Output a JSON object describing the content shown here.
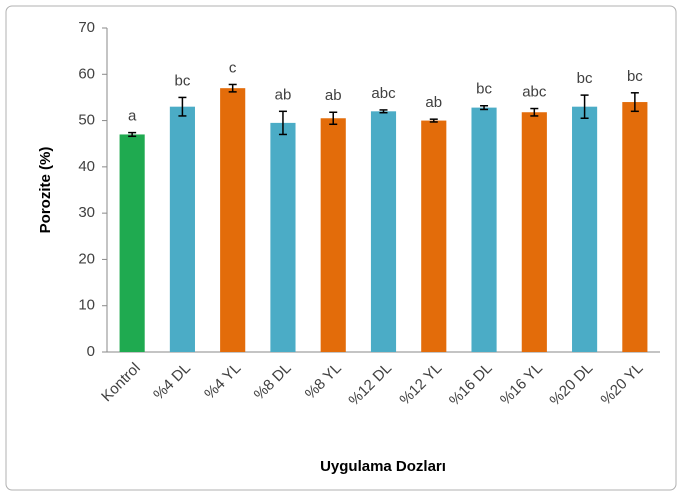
{
  "chart_data": {
    "type": "bar",
    "categories": [
      "Kontrol",
      "%4 DL",
      "%4 YL",
      "%8 DL",
      "%8 YL",
      "%12 DL",
      "%12 YL",
      "%16 DL",
      "%16 YL",
      "%20 DL",
      "%20 YL"
    ],
    "values": [
      47,
      53,
      57,
      49.5,
      50.5,
      52,
      50,
      52.8,
      51.8,
      53,
      54
    ],
    "errors": [
      0.4,
      2,
      0.8,
      2.5,
      1.3,
      0.3,
      0.3,
      0.4,
      0.8,
      2.5,
      2
    ],
    "colors": [
      "#1faa50",
      "#4bacc6",
      "#e36c0a",
      "#4bacc6",
      "#e36c0a",
      "#4bacc6",
      "#e36c0a",
      "#4bacc6",
      "#e36c0a",
      "#4bacc6",
      "#e36c0a"
    ],
    "annotations": [
      "a",
      "bc",
      "c",
      "ab",
      "ab",
      "abc",
      "ab",
      "bc",
      "abc",
      "bc",
      "bc"
    ],
    "ylabel": "Porozite (%)",
    "xlabel": "Uygulama Dozları",
    "ylim": [
      0,
      70
    ],
    "yticks": [
      0,
      10,
      20,
      30,
      40,
      50,
      60,
      70
    ],
    "grid": false
  }
}
